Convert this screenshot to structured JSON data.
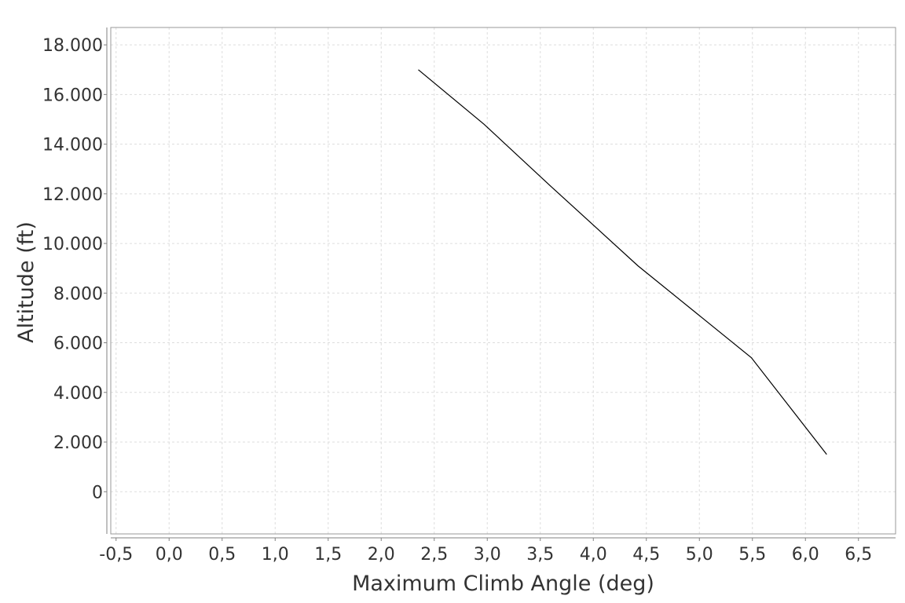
{
  "chart_data": {
    "type": "line",
    "title": "",
    "xlabel": "Maximum Climb Angle (deg)",
    "ylabel": "Altitude (ft)",
    "xlim": [
      -0.55,
      6.85
    ],
    "ylim": [
      -1700,
      18700
    ],
    "x_ticks": [
      -0.5,
      0.0,
      0.5,
      1.0,
      1.5,
      2.0,
      2.5,
      3.0,
      3.5,
      4.0,
      4.5,
      5.0,
      5.5,
      6.0,
      6.5
    ],
    "x_tick_labels": [
      "-0,5",
      "0,0",
      "0,5",
      "1,0",
      "1,5",
      "2,0",
      "2,5",
      "3,0",
      "3,5",
      "4,0",
      "4,5",
      "5,0",
      "5,5",
      "6,0",
      "6,5"
    ],
    "y_ticks": [
      0,
      2000,
      4000,
      6000,
      8000,
      10000,
      12000,
      14000,
      16000,
      18000
    ],
    "y_tick_labels": [
      "0",
      "2.000",
      "4.000",
      "6.000",
      "8.000",
      "10.000",
      "12.000",
      "14.000",
      "16.000",
      "18.000"
    ],
    "grid": true,
    "series": [
      {
        "color": "#000000",
        "x": [
          6.2,
          5.49,
          4.42,
          3.6,
          2.97,
          2.35
        ],
        "y": [
          1500,
          5400,
          9100,
          12300,
          14800,
          17000
        ]
      }
    ]
  }
}
